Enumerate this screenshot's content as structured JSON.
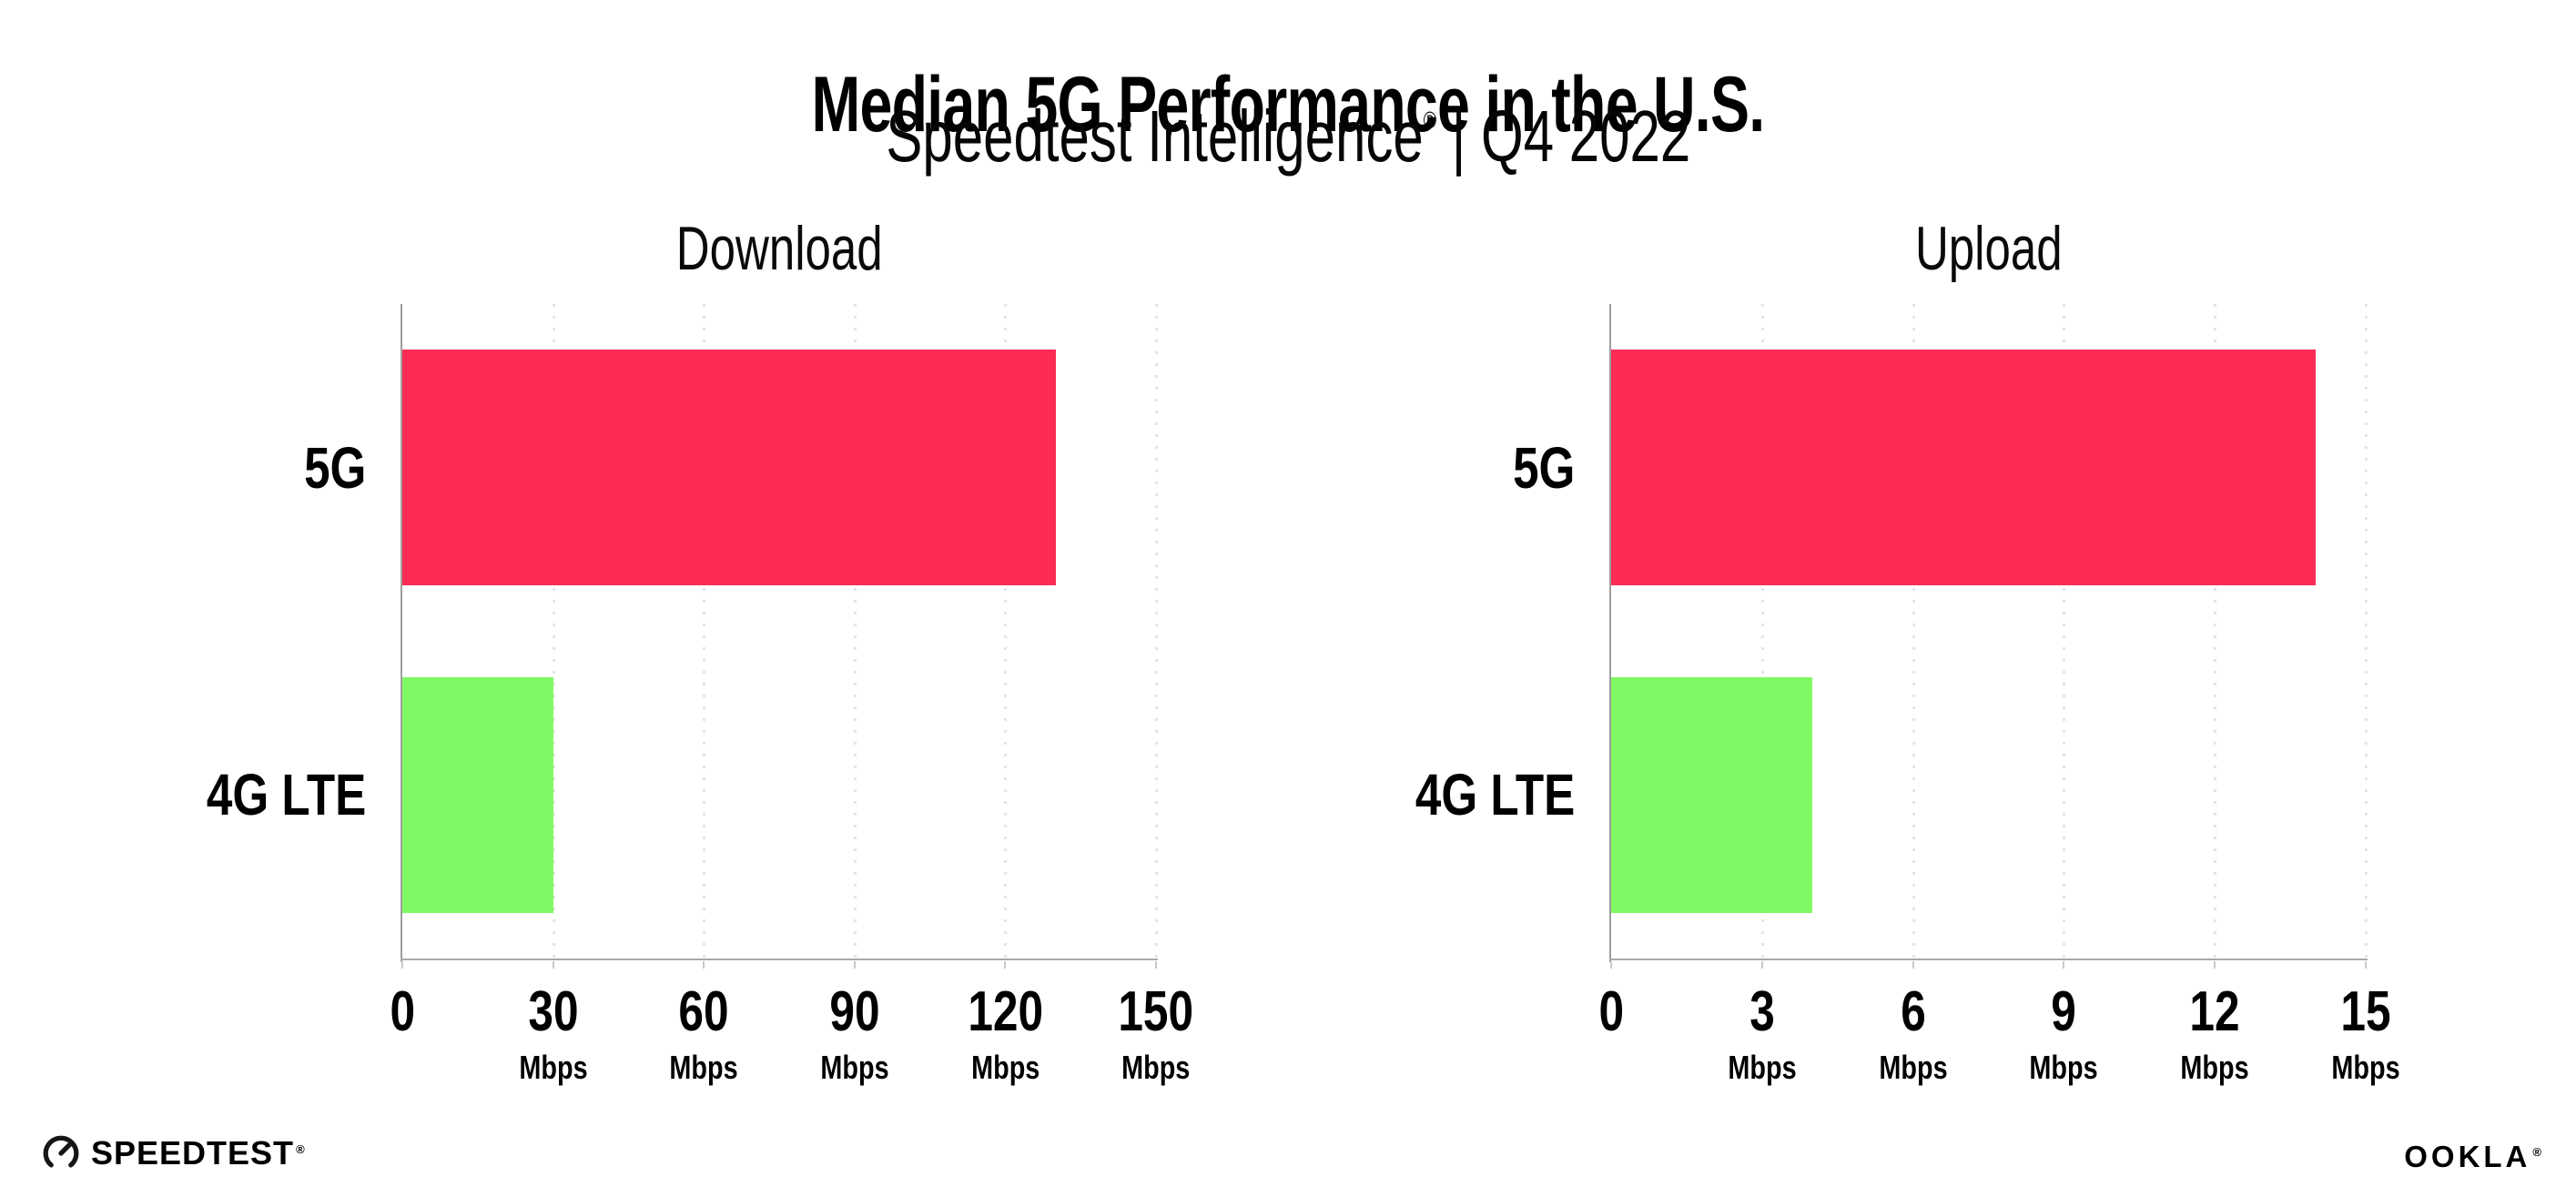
{
  "title": "Median 5G Performance in the U.S.",
  "subtitle": {
    "brand": "Speedtest Intelligence",
    "registered": "®",
    "rest": " | Q4 2022"
  },
  "footer": {
    "speedtest_logo_text": "SPEEDTEST",
    "speedtest_mark": "®",
    "ookla_logo_text": "OOKLA",
    "ookla_mark": "®"
  },
  "colors": {
    "bar_5g": "#fc2c55",
    "bar_4g_lte": "#80fa64",
    "axis_line": "#a8a8a8",
    "tick_mark": "#c9c9c9",
    "gridline_dots": "#e3e3ed",
    "text": "#000000"
  },
  "chart_data": [
    {
      "type": "bar",
      "orientation": "horizontal",
      "title": "Download",
      "categories": [
        "5G",
        "4G LTE"
      ],
      "values": [
        130,
        30
      ],
      "unit": "Mbps",
      "xlim": [
        0,
        150
      ],
      "xticks": [
        0,
        30,
        60,
        90,
        120,
        150
      ],
      "bar_colors": [
        "#fc2c55",
        "#80fa64"
      ],
      "grid": "dotted-vertical",
      "legend": "none"
    },
    {
      "type": "bar",
      "orientation": "horizontal",
      "title": "Upload",
      "categories": [
        "5G",
        "4G LTE"
      ],
      "values": [
        14,
        4
      ],
      "unit": "Mbps",
      "xlim": [
        0,
        15
      ],
      "xticks": [
        0,
        3,
        6,
        9,
        12,
        15
      ],
      "bar_colors": [
        "#fc2c55",
        "#80fa64"
      ],
      "grid": "dotted-vertical",
      "legend": "none"
    }
  ]
}
